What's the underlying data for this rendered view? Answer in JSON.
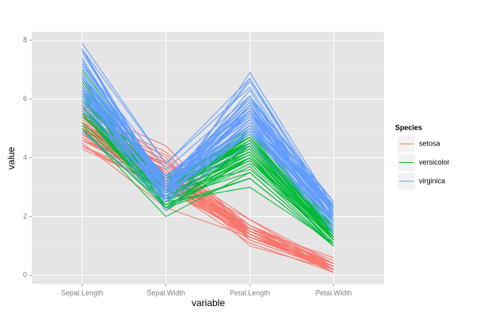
{
  "chart_data": {
    "type": "parallel",
    "x_label": "variable",
    "y_label": "value",
    "categories": [
      "Sepal.Length",
      "Sepal.Width",
      "Petal.Length",
      "Petal.Width"
    ],
    "ylim": [
      -0.29,
      8.29
    ],
    "yticks": [
      0,
      2,
      4,
      6,
      8
    ],
    "grid": true,
    "legend_title": "Species",
    "legend_position": "right",
    "series": [
      {
        "name": "setosa",
        "color": "#F8766D",
        "values": [
          [
            5.1,
            3.5,
            1.4,
            0.2
          ],
          [
            4.9,
            3.0,
            1.4,
            0.2
          ],
          [
            4.7,
            3.2,
            1.3,
            0.2
          ],
          [
            4.6,
            3.1,
            1.5,
            0.2
          ],
          [
            5.0,
            3.6,
            1.4,
            0.2
          ],
          [
            5.4,
            3.9,
            1.7,
            0.4
          ],
          [
            4.6,
            3.4,
            1.4,
            0.3
          ],
          [
            5.0,
            3.4,
            1.5,
            0.2
          ],
          [
            4.4,
            2.9,
            1.4,
            0.2
          ],
          [
            4.9,
            3.1,
            1.5,
            0.1
          ],
          [
            5.4,
            3.7,
            1.5,
            0.2
          ],
          [
            4.8,
            3.4,
            1.6,
            0.2
          ],
          [
            4.8,
            3.0,
            1.4,
            0.1
          ],
          [
            4.3,
            3.0,
            1.1,
            0.1
          ],
          [
            5.8,
            4.0,
            1.2,
            0.2
          ],
          [
            5.7,
            4.4,
            1.5,
            0.4
          ],
          [
            5.4,
            3.9,
            1.3,
            0.4
          ],
          [
            5.1,
            3.5,
            1.4,
            0.3
          ],
          [
            5.7,
            3.8,
            1.7,
            0.3
          ],
          [
            5.1,
            3.8,
            1.5,
            0.3
          ],
          [
            5.4,
            3.4,
            1.7,
            0.2
          ],
          [
            5.1,
            3.7,
            1.5,
            0.4
          ],
          [
            4.6,
            3.6,
            1.0,
            0.2
          ],
          [
            5.1,
            3.3,
            1.7,
            0.5
          ],
          [
            4.8,
            3.4,
            1.9,
            0.2
          ],
          [
            5.0,
            3.0,
            1.6,
            0.2
          ],
          [
            5.0,
            3.4,
            1.6,
            0.4
          ],
          [
            5.2,
            3.5,
            1.5,
            0.2
          ],
          [
            5.2,
            3.4,
            1.4,
            0.2
          ],
          [
            4.7,
            3.2,
            1.6,
            0.2
          ],
          [
            4.8,
            3.1,
            1.6,
            0.2
          ],
          [
            5.4,
            3.4,
            1.5,
            0.4
          ],
          [
            5.2,
            4.1,
            1.5,
            0.1
          ],
          [
            5.5,
            4.2,
            1.4,
            0.2
          ],
          [
            4.9,
            3.1,
            1.5,
            0.2
          ],
          [
            5.0,
            3.2,
            1.2,
            0.2
          ],
          [
            5.5,
            3.5,
            1.3,
            0.2
          ],
          [
            4.9,
            3.6,
            1.4,
            0.1
          ],
          [
            4.4,
            3.0,
            1.3,
            0.2
          ],
          [
            5.1,
            3.4,
            1.5,
            0.2
          ],
          [
            5.0,
            3.5,
            1.3,
            0.3
          ],
          [
            4.5,
            2.3,
            1.3,
            0.3
          ],
          [
            4.4,
            3.2,
            1.3,
            0.2
          ],
          [
            5.0,
            3.5,
            1.6,
            0.6
          ],
          [
            5.1,
            3.8,
            1.9,
            0.4
          ],
          [
            4.8,
            3.0,
            1.4,
            0.3
          ],
          [
            5.1,
            3.8,
            1.6,
            0.2
          ],
          [
            4.6,
            3.2,
            1.4,
            0.2
          ],
          [
            5.3,
            3.7,
            1.5,
            0.2
          ],
          [
            5.0,
            3.3,
            1.4,
            0.2
          ]
        ]
      },
      {
        "name": "versicolor",
        "color": "#00BA38",
        "values": [
          [
            7.0,
            3.2,
            4.7,
            1.4
          ],
          [
            6.4,
            3.2,
            4.5,
            1.5
          ],
          [
            6.9,
            3.1,
            4.9,
            1.5
          ],
          [
            5.5,
            2.3,
            4.0,
            1.3
          ],
          [
            6.5,
            2.8,
            4.6,
            1.5
          ],
          [
            5.7,
            2.8,
            4.5,
            1.3
          ],
          [
            6.3,
            3.3,
            4.7,
            1.6
          ],
          [
            4.9,
            2.4,
            3.3,
            1.0
          ],
          [
            6.6,
            2.9,
            4.6,
            1.3
          ],
          [
            5.2,
            2.7,
            3.9,
            1.4
          ],
          [
            5.0,
            2.0,
            3.5,
            1.0
          ],
          [
            5.9,
            3.0,
            4.2,
            1.5
          ],
          [
            6.0,
            2.2,
            4.0,
            1.0
          ],
          [
            6.1,
            2.9,
            4.7,
            1.4
          ],
          [
            5.6,
            2.9,
            3.6,
            1.3
          ],
          [
            6.7,
            3.1,
            4.4,
            1.4
          ],
          [
            5.6,
            3.0,
            4.5,
            1.5
          ],
          [
            5.8,
            2.7,
            4.1,
            1.0
          ],
          [
            6.2,
            2.2,
            4.5,
            1.5
          ],
          [
            5.6,
            2.5,
            3.9,
            1.1
          ],
          [
            5.9,
            3.2,
            4.8,
            1.8
          ],
          [
            6.1,
            2.8,
            4.0,
            1.3
          ],
          [
            6.3,
            2.5,
            4.9,
            1.5
          ],
          [
            6.1,
            2.8,
            4.7,
            1.2
          ],
          [
            6.4,
            2.9,
            4.3,
            1.3
          ],
          [
            6.6,
            3.0,
            4.4,
            1.4
          ],
          [
            6.8,
            2.8,
            4.8,
            1.4
          ],
          [
            6.7,
            3.0,
            5.0,
            1.7
          ],
          [
            6.0,
            2.9,
            4.5,
            1.5
          ],
          [
            5.7,
            2.6,
            3.5,
            1.0
          ],
          [
            5.5,
            2.4,
            3.8,
            1.1
          ],
          [
            5.5,
            2.4,
            3.7,
            1.0
          ],
          [
            5.8,
            2.7,
            3.9,
            1.2
          ],
          [
            6.0,
            2.7,
            5.1,
            1.6
          ],
          [
            5.4,
            3.0,
            4.5,
            1.5
          ],
          [
            6.0,
            3.4,
            4.5,
            1.6
          ],
          [
            6.7,
            3.1,
            4.7,
            1.5
          ],
          [
            6.3,
            2.3,
            4.4,
            1.3
          ],
          [
            5.6,
            3.0,
            4.1,
            1.3
          ],
          [
            5.5,
            2.5,
            4.0,
            1.3
          ],
          [
            5.5,
            2.6,
            4.4,
            1.2
          ],
          [
            6.1,
            3.0,
            4.6,
            1.4
          ],
          [
            5.8,
            2.6,
            4.0,
            1.2
          ],
          [
            5.0,
            2.3,
            3.3,
            1.0
          ],
          [
            5.6,
            2.7,
            4.2,
            1.3
          ],
          [
            5.7,
            3.0,
            4.2,
            1.2
          ],
          [
            5.7,
            2.9,
            4.2,
            1.3
          ],
          [
            6.2,
            2.9,
            4.3,
            1.3
          ],
          [
            5.1,
            2.5,
            3.0,
            1.1
          ],
          [
            5.7,
            2.8,
            4.1,
            1.3
          ]
        ]
      },
      {
        "name": "virginica",
        "color": "#619CFF",
        "values": [
          [
            6.3,
            3.3,
            6.0,
            2.5
          ],
          [
            5.8,
            2.7,
            5.1,
            1.9
          ],
          [
            7.1,
            3.0,
            5.9,
            2.1
          ],
          [
            6.3,
            2.9,
            5.6,
            1.8
          ],
          [
            6.5,
            3.0,
            5.8,
            2.2
          ],
          [
            7.6,
            3.0,
            6.6,
            2.1
          ],
          [
            4.9,
            2.5,
            4.5,
            1.7
          ],
          [
            7.3,
            2.9,
            6.3,
            1.8
          ],
          [
            6.7,
            2.5,
            5.8,
            1.8
          ],
          [
            7.2,
            3.6,
            6.1,
            2.5
          ],
          [
            6.5,
            3.2,
            5.1,
            2.0
          ],
          [
            6.4,
            2.7,
            5.3,
            1.9
          ],
          [
            6.8,
            3.0,
            5.5,
            2.1
          ],
          [
            5.7,
            2.5,
            5.0,
            2.0
          ],
          [
            5.8,
            2.8,
            5.1,
            2.4
          ],
          [
            6.4,
            3.2,
            5.3,
            2.3
          ],
          [
            6.5,
            3.0,
            5.5,
            1.8
          ],
          [
            7.7,
            3.8,
            6.7,
            2.2
          ],
          [
            7.7,
            2.6,
            6.9,
            2.3
          ],
          [
            6.0,
            2.2,
            5.0,
            1.5
          ],
          [
            6.9,
            3.2,
            5.7,
            2.3
          ],
          [
            5.6,
            2.8,
            4.9,
            2.0
          ],
          [
            7.7,
            2.8,
            6.7,
            2.0
          ],
          [
            6.3,
            2.7,
            4.9,
            1.8
          ],
          [
            6.7,
            3.3,
            5.7,
            2.1
          ],
          [
            7.2,
            3.2,
            6.0,
            1.8
          ],
          [
            6.2,
            2.8,
            4.8,
            1.8
          ],
          [
            6.1,
            3.0,
            4.9,
            1.8
          ],
          [
            6.4,
            2.8,
            5.6,
            2.1
          ],
          [
            7.2,
            3.0,
            5.8,
            1.6
          ],
          [
            7.4,
            2.8,
            6.1,
            1.9
          ],
          [
            7.9,
            3.8,
            6.4,
            2.0
          ],
          [
            6.4,
            2.8,
            5.6,
            2.2
          ],
          [
            6.3,
            2.8,
            5.1,
            1.5
          ],
          [
            6.1,
            2.6,
            5.6,
            1.4
          ],
          [
            7.7,
            3.0,
            6.1,
            2.3
          ],
          [
            6.3,
            3.4,
            5.6,
            2.4
          ],
          [
            6.4,
            3.1,
            5.5,
            1.8
          ],
          [
            6.0,
            3.0,
            4.8,
            1.8
          ],
          [
            6.9,
            3.1,
            5.4,
            2.1
          ],
          [
            6.7,
            3.1,
            5.6,
            2.4
          ],
          [
            6.9,
            3.1,
            5.1,
            2.3
          ],
          [
            5.8,
            2.7,
            5.1,
            1.9
          ],
          [
            6.8,
            3.2,
            5.9,
            2.3
          ],
          [
            6.7,
            3.3,
            5.7,
            2.5
          ],
          [
            6.7,
            3.0,
            5.2,
            2.3
          ],
          [
            6.3,
            2.5,
            5.0,
            1.9
          ],
          [
            6.5,
            3.0,
            5.2,
            2.0
          ],
          [
            6.2,
            3.4,
            5.4,
            2.3
          ],
          [
            5.9,
            3.0,
            5.1,
            1.8
          ]
        ]
      }
    ]
  }
}
